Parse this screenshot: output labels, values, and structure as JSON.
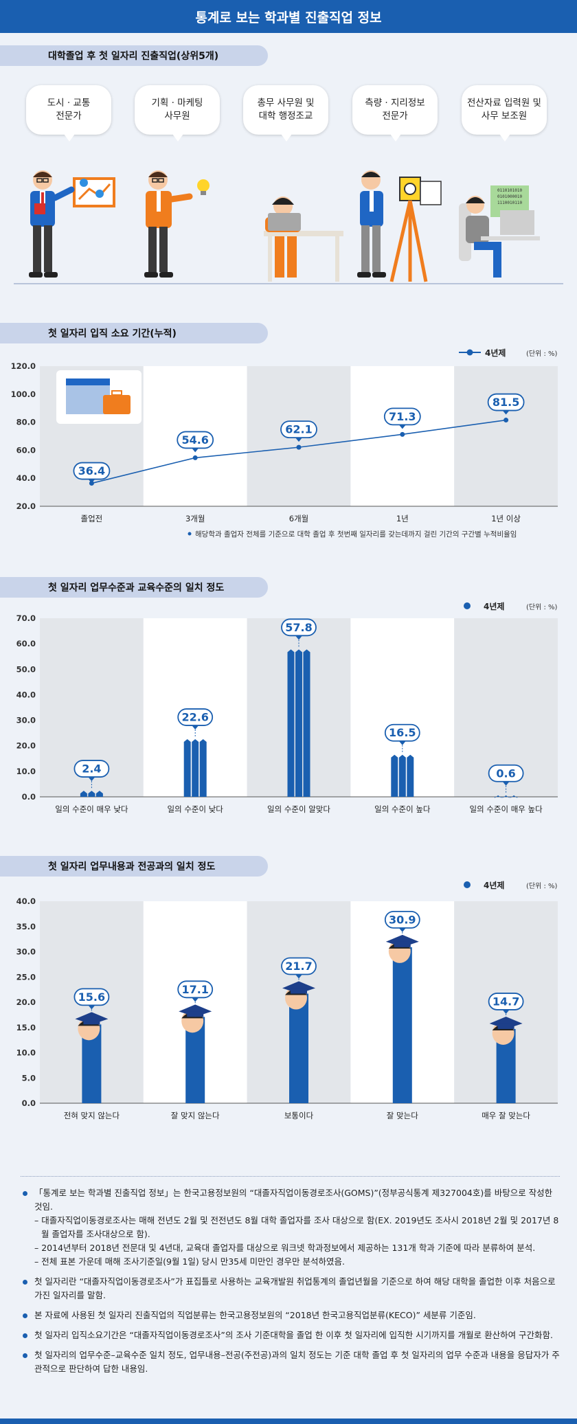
{
  "header": {
    "title": "통계로 보는 학과별 진출직업 정보"
  },
  "section1": {
    "title": "대학졸업 후 첫 일자리 진출직업(상위5개)",
    "jobs": [
      "도시 · 교통\n전문가",
      "기획 · 마케팅\n사무원",
      "총무 사무원 및\n대학 행정조교",
      "측량 · 지리정보\n전문가",
      "전산자료 입력원 및\n사무 보조원"
    ],
    "binary_text": "0110101010\n0101000010\n1110010110"
  },
  "section2": {
    "title": "첫 일자리 입직 소요 기간(누적)",
    "legend": "4년제",
    "unit": "(단위 : %)",
    "footnote": "해당학과 졸업자 전체를 기준으로 대학 졸업 후 첫번째 일자리를 갖는데까지 걸린 기간의 구간별 누적비율임"
  },
  "section3": {
    "title": "첫 일자리 업무수준과 교육수준의 일치 정도",
    "legend": "4년제",
    "unit": "(단위 : %)"
  },
  "section4": {
    "title": "첫 일자리 업무내용과 전공과의 일치 정도",
    "legend": "4년제",
    "unit": "(단위 : %)"
  },
  "chart_data": [
    {
      "type": "line",
      "title": "첫 일자리 입직 소요 기간(누적)",
      "categories": [
        "졸업전",
        "3개월",
        "6개월",
        "1년",
        "1년 이상"
      ],
      "series": [
        {
          "name": "4년제",
          "values": [
            36.4,
            54.6,
            62.1,
            71.3,
            81.5
          ]
        }
      ],
      "ylim": [
        20,
        120
      ],
      "yticks": [
        "120.0",
        "100.0",
        "80.0",
        "60.0",
        "40.0",
        "20.0"
      ],
      "color": "#1a5fb0"
    },
    {
      "type": "bar",
      "title": "첫 일자리 업무수준과 교육수준의 일치 정도",
      "categories": [
        "일의 수준이 매우 낮다",
        "일의 수준이 낮다",
        "일의 수준이 알맞다",
        "일의 수준이 높다",
        "일의 수준이 매우 높다"
      ],
      "series": [
        {
          "name": "4년제",
          "values": [
            2.4,
            22.6,
            57.8,
            16.5,
            0.6
          ]
        }
      ],
      "ylim": [
        0,
        70
      ],
      "yticks": [
        "70.0",
        "60.0",
        "50.0",
        "40.0",
        "30.0",
        "20.0",
        "10.0",
        "0.0"
      ],
      "color": "#1a5fb0"
    },
    {
      "type": "bar",
      "title": "첫 일자리 업무내용과 전공과의 일치 정도",
      "categories": [
        "전혀 맞지 않는다",
        "잘 맞지 않는다",
        "보통이다",
        "잘 맞는다",
        "매우 잘 맞는다"
      ],
      "series": [
        {
          "name": "4년제",
          "values": [
            15.6,
            17.1,
            21.7,
            30.9,
            14.7
          ]
        }
      ],
      "ylim": [
        0,
        40
      ],
      "yticks": [
        "40.0",
        "35.0",
        "30.0",
        "25.0",
        "20.0",
        "15.0",
        "10.0",
        "5.0",
        "0.0"
      ],
      "color": "#1a5fb0"
    }
  ],
  "notes": {
    "items": [
      {
        "text": "「통계로 보는 학과별 진출직업 정보」는 한국고용정보원의 “대졸자직업이동경로조사(GOMS)”(정부공식통계 제327004호)를 바탕으로 작성한 것임.",
        "subs": [
          "– 대졸자직업이동경로조사는 매해 전년도 2월 및 전전년도 8월 대학 졸업자를 조사 대상으로 함(EX. 2019년도 조사시 2018년 2월 및 2017년 8월 졸업자를 조사대상으로 함).",
          "– 2014년부터 2018년 전문대 및 4년대, 교육대 졸업자를 대상으로 워크넷 학과정보에서 제공하는 131개 학과 기준에 따라 분류하여 분석.",
          "– 전체 표본 가운데 매해 조사기준일(9월 1일) 당시 만35세 미만인 경우만 분석하였음."
        ]
      },
      {
        "text": "첫 일자리란 “대졸자직업이동경로조사”가 표집틀로 사용하는 교육개발원 취업통계의 졸업년월을 기준으로 하여 해당 대학을 졸업한 이후 처음으로 가진 일자리를 말함.",
        "subs": []
      },
      {
        "text": "본 자료에 사용된 첫 일자리 진출직업의 직업분류는 한국고용정보원의 “2018년 한국고용직업분류(KECO)” 세분류 기준임.",
        "subs": []
      },
      {
        "text": "첫 일자리 입직소요기간은 “대졸자직업이동경로조사”의 조사 기준대학을 졸업 한 이후 첫 일자리에 입직한 시기까지를 개월로 환산하여 구간화함.",
        "subs": []
      },
      {
        "text": "첫 일자리의 업무수준–교육수준 일치 정도, 업무내용–전공(주전공)과의 일치 정도는 기준 대학 졸업 후 첫 일자리의 업무 수준과 내용을 응답자가 주관적으로 판단하여 답한 내용임.",
        "subs": []
      }
    ]
  }
}
